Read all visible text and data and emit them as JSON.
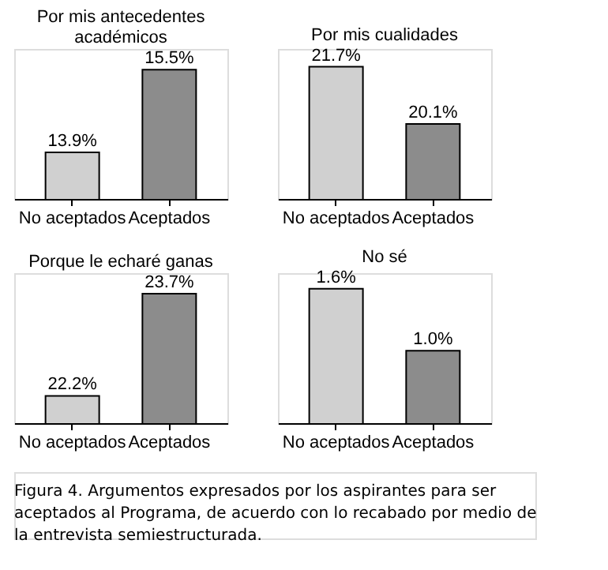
{
  "chart_data": [
    {
      "type": "bar",
      "title": "Por mis antecedentes académicos",
      "categories": [
        "No aceptados",
        "Aceptados"
      ],
      "values": [
        13.9,
        15.5
      ],
      "colors": [
        "#d0d0d0",
        "#8c8c8c"
      ],
      "ylim": [
        13.0,
        15.9
      ],
      "tick_labels": "x",
      "data_labels": true,
      "value_labels": [
        "13.9%",
        "15.5%"
      ],
      "grid": false
    },
    {
      "type": "bar",
      "title": "Por mis cualidades",
      "categories": [
        "No aceptados",
        "Aceptados"
      ],
      "values": [
        21.7,
        20.1
      ],
      "colors": [
        "#d0d0d0",
        "#8c8c8c"
      ],
      "ylim": [
        18.0,
        22.2
      ],
      "tick_labels": "x",
      "data_labels": true,
      "value_labels": [
        "21.7%",
        "20.1%"
      ],
      "grid": false
    },
    {
      "type": "bar",
      "title": "Porque le echaré ganas",
      "categories": [
        "No aceptados",
        "Aceptados"
      ],
      "values": [
        22.2,
        23.7
      ],
      "colors": [
        "#d0d0d0",
        "#8c8c8c"
      ],
      "ylim": [
        21.8,
        24.0
      ],
      "tick_labels": "x",
      "data_labels": true,
      "value_labels": [
        "22.2%",
        "23.7%"
      ],
      "grid": false
    },
    {
      "type": "bar",
      "title": "No sé",
      "categories": [
        "No aceptados",
        "Aceptados"
      ],
      "values": [
        1.6,
        1.0
      ],
      "colors": [
        "#d0d0d0",
        "#8c8c8c"
      ],
      "ylim": [
        0.3,
        1.75
      ],
      "tick_labels": "x",
      "data_labels": true,
      "value_labels": [
        "1.6%",
        "1.0%"
      ],
      "grid": false,
      "annotations": [
        "Figura 4. Argumentos expresados por los aspirantes para ser aceptados al Programa, de acuerdo con lo recabado por medio de la entrevista semiestructurada."
      ]
    }
  ]
}
